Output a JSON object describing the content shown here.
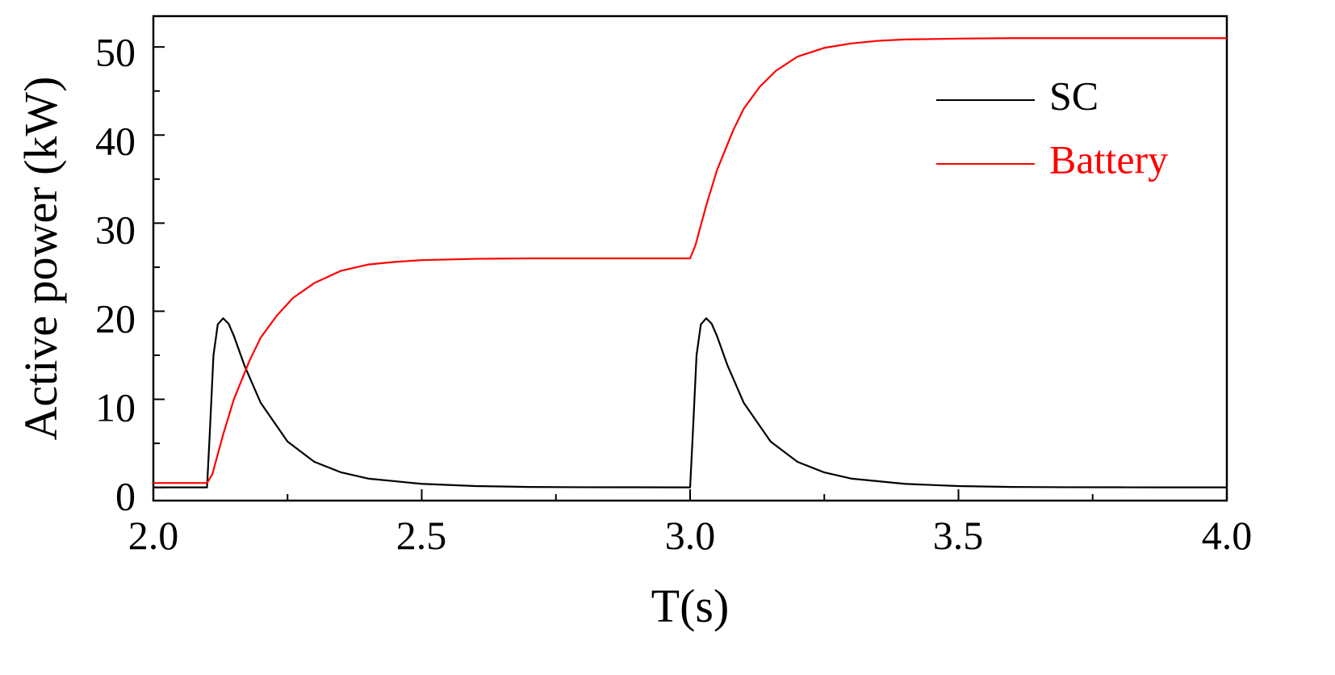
{
  "chart_data": {
    "type": "line",
    "title": "",
    "xlabel": "T(s)",
    "ylabel": "Active power (kW)",
    "xlim": [
      2.0,
      4.0
    ],
    "ylim": [
      -1.5,
      53.5
    ],
    "x_ticks": [
      "2.0",
      "2.5",
      "3.0",
      "3.5",
      "4.0"
    ],
    "y_ticks": [
      "0",
      "10",
      "20",
      "30",
      "40",
      "50"
    ],
    "grid": false,
    "legend_position": "top-right",
    "series": [
      {
        "name": "SC",
        "color": "#000000",
        "x": [
          2.0,
          2.1,
          2.105,
          2.112,
          2.12,
          2.13,
          2.14,
          2.15,
          2.17,
          2.2,
          2.25,
          2.3,
          2.35,
          2.4,
          2.5,
          2.6,
          2.7,
          2.8,
          2.9,
          2.99,
          3.0,
          3.005,
          3.012,
          3.02,
          3.03,
          3.04,
          3.05,
          3.07,
          3.1,
          3.15,
          3.2,
          3.25,
          3.3,
          3.4,
          3.5,
          3.6,
          3.7,
          3.8,
          3.9,
          4.0
        ],
        "y": [
          0,
          0,
          6,
          15,
          18.5,
          19.2,
          18.6,
          17.2,
          13.8,
          9.6,
          5.2,
          2.9,
          1.7,
          1.0,
          0.4,
          0.15,
          0.05,
          0.02,
          0.01,
          0,
          0,
          6,
          15,
          18.5,
          19.2,
          18.6,
          17.2,
          13.8,
          9.6,
          5.2,
          2.9,
          1.7,
          1.0,
          0.4,
          0.15,
          0.05,
          0.02,
          0.01,
          0,
          0
        ]
      },
      {
        "name": "Battery",
        "color": "#ff0000",
        "x": [
          2.0,
          2.1,
          2.11,
          2.13,
          2.15,
          2.18,
          2.2,
          2.23,
          2.26,
          2.3,
          2.35,
          2.4,
          2.45,
          2.5,
          2.6,
          2.7,
          2.8,
          2.9,
          3.0,
          3.01,
          3.03,
          3.05,
          3.08,
          3.1,
          3.13,
          3.16,
          3.2,
          3.25,
          3.3,
          3.35,
          3.4,
          3.5,
          3.6,
          3.7,
          3.8,
          3.9,
          4.0
        ],
        "y": [
          0.5,
          0.5,
          1.5,
          6.0,
          10.0,
          14.5,
          17.0,
          19.5,
          21.5,
          23.2,
          24.6,
          25.3,
          25.6,
          25.8,
          25.95,
          26.0,
          26.0,
          26.0,
          26.0,
          27.5,
          32.0,
          36.0,
          40.5,
          43.0,
          45.5,
          47.3,
          48.9,
          49.9,
          50.4,
          50.7,
          50.85,
          50.95,
          51.0,
          51.0,
          51.0,
          51.0,
          51.0
        ]
      }
    ]
  }
}
